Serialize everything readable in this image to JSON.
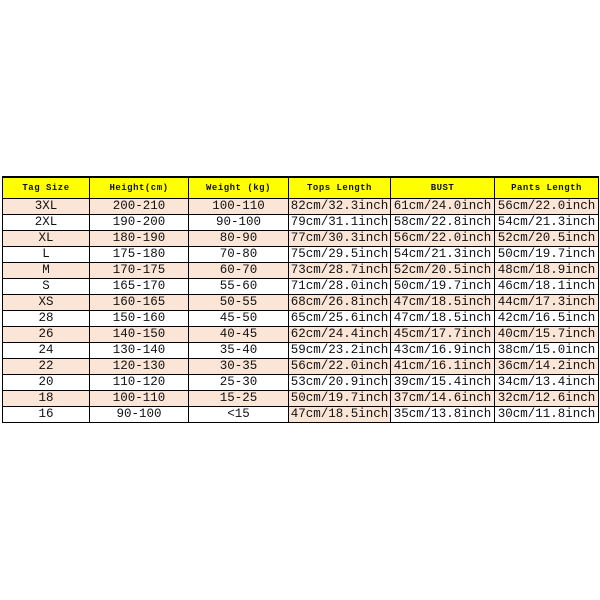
{
  "colors": {
    "header_bg": "#ffff00",
    "stripe_bg": "#fbe5d6",
    "border": "#000000",
    "text": "#111111",
    "page_bg": "#ffffff"
  },
  "chart_data": {
    "type": "table",
    "title": "",
    "columns": [
      "Tag Size",
      "Height(cm)",
      "Weight (kg)",
      "Tops Length",
      "BUST",
      "Pants Length"
    ],
    "rows": [
      [
        "3XL",
        "200-210",
        "100-110",
        "82cm/32.3inch",
        "61cm/24.0inch",
        "56cm/22.0inch"
      ],
      [
        "2XL",
        "190-200",
        "90-100",
        "79cm/31.1inch",
        "58cm/22.8inch",
        "54cm/21.3inch"
      ],
      [
        "XL",
        "180-190",
        "80-90",
        "77cm/30.3inch",
        "56cm/22.0inch",
        "52cm/20.5inch"
      ],
      [
        "L",
        "175-180",
        "70-80",
        "75cm/29.5inch",
        "54cm/21.3inch",
        "50cm/19.7inch"
      ],
      [
        "M",
        "170-175",
        "60-70",
        "73cm/28.7inch",
        "52cm/20.5inch",
        "48cm/18.9inch"
      ],
      [
        "S",
        "165-170",
        "55-60",
        "71cm/28.0inch",
        "50cm/19.7inch",
        "46cm/18.1inch"
      ],
      [
        "XS",
        "160-165",
        "50-55",
        "68cm/26.8inch",
        "47cm/18.5inch",
        "44cm/17.3inch"
      ],
      [
        "28",
        "150-160",
        "45-50",
        "65cm/25.6inch",
        "47cm/18.5inch",
        "42cm/16.5inch"
      ],
      [
        "26",
        "140-150",
        "40-45",
        "62cm/24.4inch",
        "45cm/17.7inch",
        "40cm/15.7inch"
      ],
      [
        "24",
        "130-140",
        "35-40",
        "59cm/23.2inch",
        "43cm/16.9inch",
        "38cm/15.0inch"
      ],
      [
        "22",
        "120-130",
        "30-35",
        "56cm/22.0inch",
        "41cm/16.1inch",
        "36cm/14.2inch"
      ],
      [
        "20",
        "110-120",
        "25-30",
        "53cm/20.9inch",
        "39cm/15.4inch",
        "34cm/13.4inch"
      ],
      [
        "18",
        "100-110",
        "15-25",
        "50cm/19.7inch",
        "37cm/14.6inch",
        "32cm/12.6inch"
      ],
      [
        "16",
        "90-100",
        "<15",
        "47cm/18.5inch",
        "35cm/13.8inch",
        "30cm/11.8inch"
      ]
    ],
    "layout": {
      "stripe_pattern": "odd data rows shaded peach, even rows white",
      "anomaly": "last row Tops Length cell shaded peach",
      "position": "table vertically centered on white canvas"
    }
  }
}
